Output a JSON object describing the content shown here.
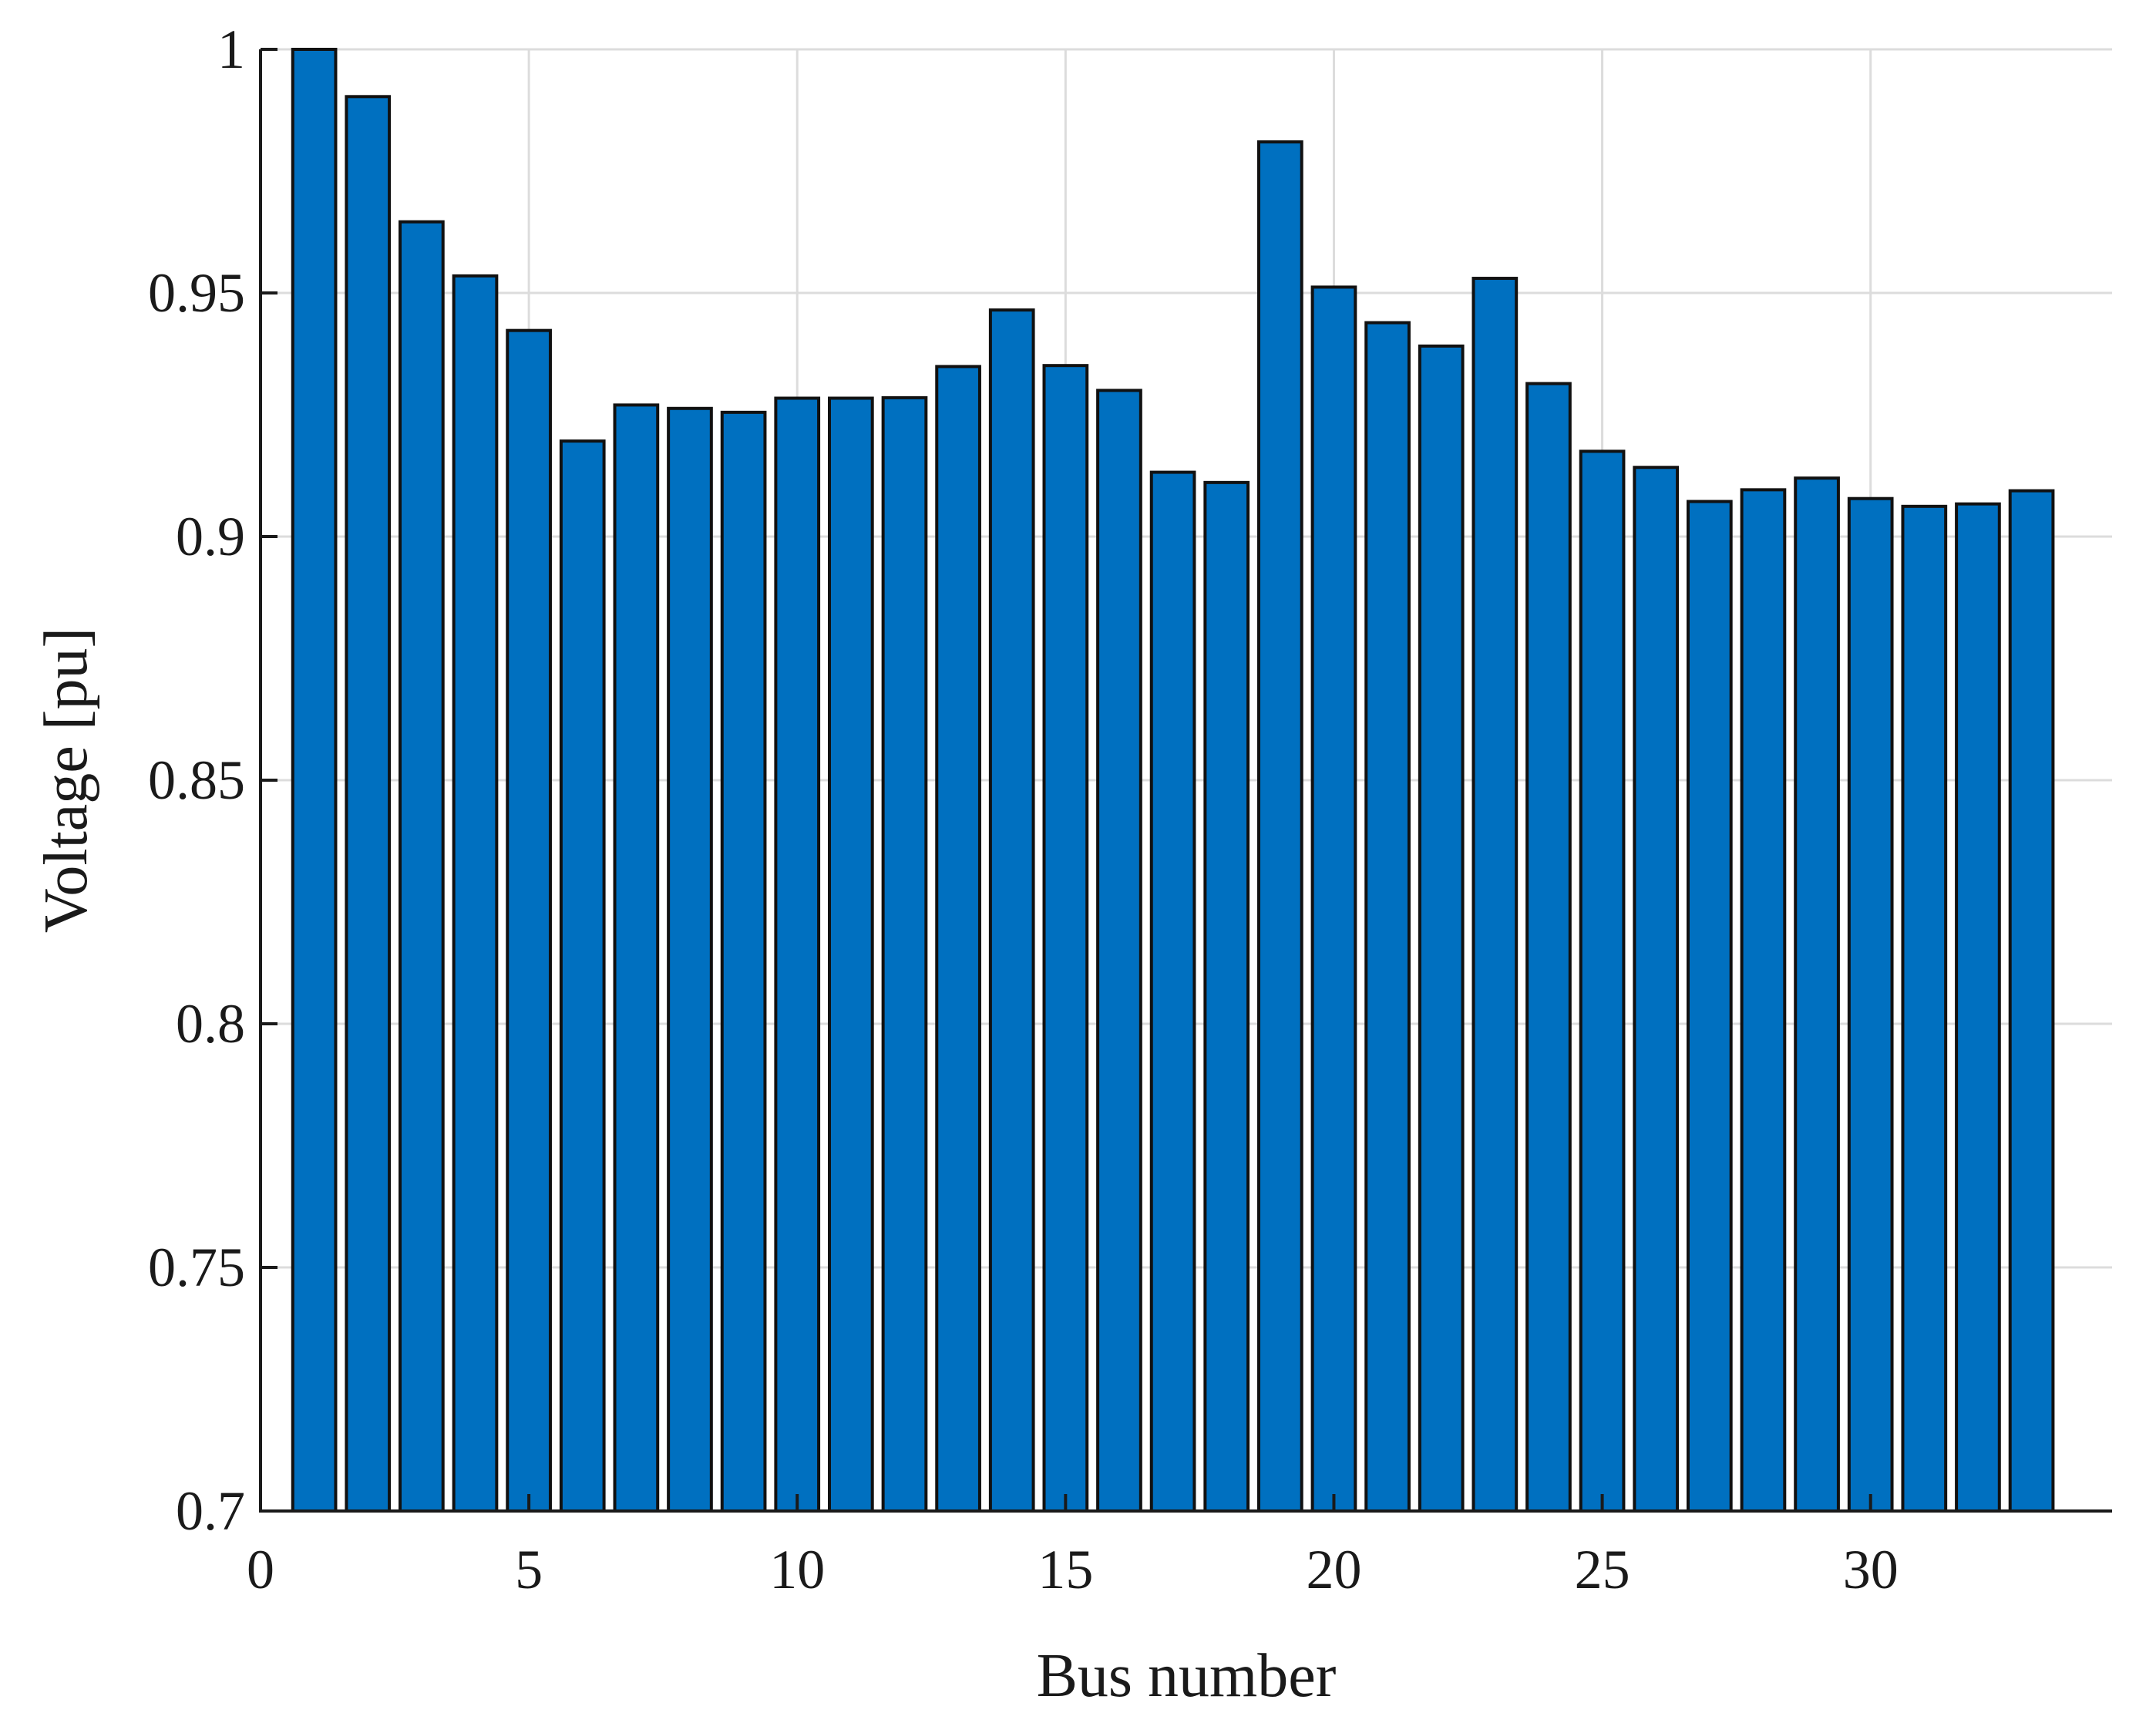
{
  "chart_data": {
    "type": "bar",
    "title": "",
    "xlabel": "Bus number",
    "ylabel": "Voltage [pu]",
    "xlim": [
      0,
      34.5
    ],
    "ylim": [
      0.7,
      1.0
    ],
    "xticks": [
      0,
      5,
      10,
      15,
      20,
      25,
      30
    ],
    "yticks": [
      0.7,
      0.75,
      0.8,
      0.85,
      0.9,
      0.95,
      1.0
    ],
    "xtick_labels": [
      "0",
      "5",
      "10",
      "15",
      "20",
      "25",
      "30"
    ],
    "ytick_labels": [
      "0.7",
      "0.75",
      "0.8",
      "0.85",
      "0.9",
      "0.95",
      "1"
    ],
    "grid": true,
    "bar_color": "#0070c0",
    "categories": [
      1,
      2,
      3,
      4,
      5,
      6,
      7,
      8,
      9,
      10,
      11,
      12,
      13,
      14,
      15,
      16,
      17,
      18,
      19,
      20,
      21,
      22,
      23,
      24,
      25,
      26,
      27,
      28,
      29,
      30,
      31,
      32,
      33
    ],
    "values": [
      1.0,
      0.9903,
      0.9646,
      0.9535,
      0.9423,
      0.9196,
      0.927,
      0.9263,
      0.9255,
      0.9284,
      0.9284,
      0.9285,
      0.9349,
      0.9465,
      0.9351,
      0.93,
      0.9132,
      0.9111,
      0.981,
      0.9512,
      0.9439,
      0.9391,
      0.953,
      0.9314,
      0.9175,
      0.9142,
      0.9072,
      0.9096,
      0.912,
      0.9078,
      0.9062,
      0.9067,
      0.9094
    ]
  }
}
